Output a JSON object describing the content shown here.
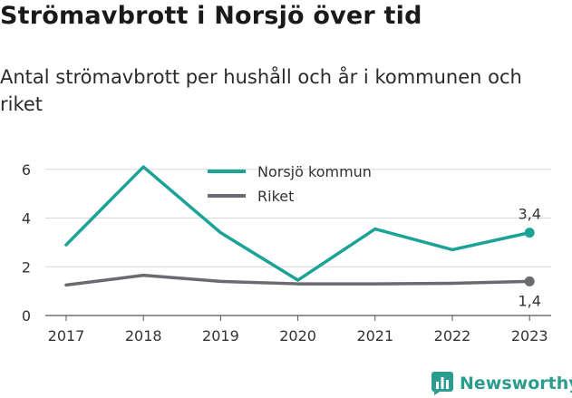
{
  "header": {
    "title": "Strömavbrott i Norsjö över tid",
    "subtitle": "Antal strömavbrott per hushåll och år i kommunen och riket"
  },
  "brand": {
    "name": "Newsworthy",
    "icon": "bar-chart-logo-icon",
    "color": "#2b9c8e"
  },
  "chart_data": {
    "type": "line",
    "categories": [
      "2017",
      "2018",
      "2019",
      "2020",
      "2021",
      "2022",
      "2023"
    ],
    "series": [
      {
        "name": "Norsjö kommun",
        "color": "#1aa396",
        "values": [
          2.9,
          6.1,
          3.4,
          1.45,
          3.55,
          2.7,
          3.4
        ],
        "end_label": "3,4"
      },
      {
        "name": "Riket",
        "color": "#6b6a70",
        "values": [
          1.25,
          1.65,
          1.4,
          1.3,
          1.3,
          1.32,
          1.4
        ],
        "end_label": "1,4"
      }
    ],
    "yticks": [
      0,
      2,
      4,
      6
    ],
    "ylim": [
      0,
      6.3
    ],
    "grid": true,
    "legend_position": "top-center"
  }
}
